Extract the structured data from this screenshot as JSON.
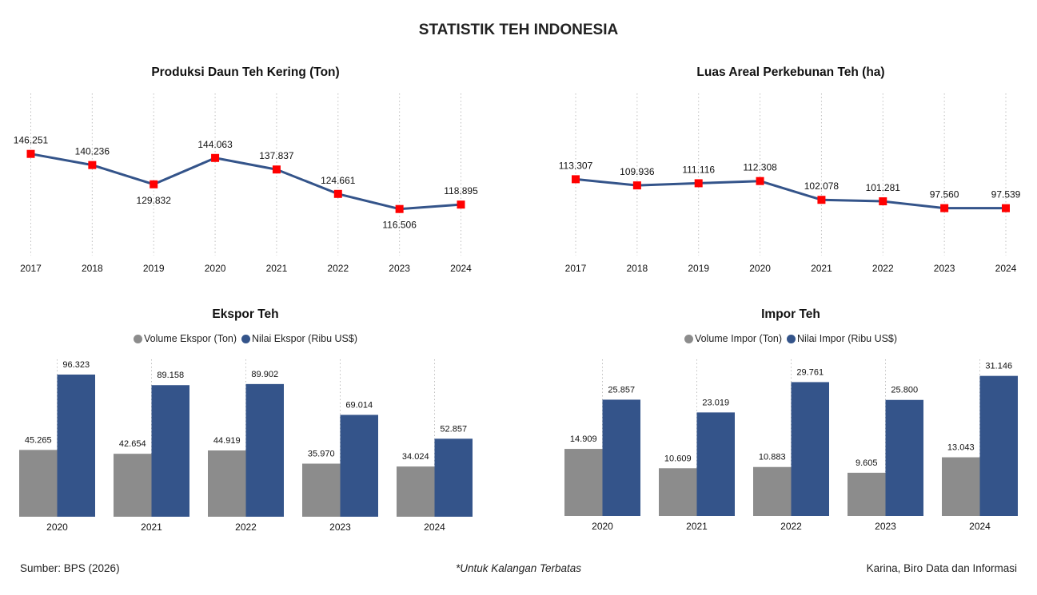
{
  "header": {
    "title": "STATISTIK TEH INDONESIA"
  },
  "footer": {
    "source": "Sumber: BPS (2026)",
    "note": "*Untuk Kalangan Terbatas",
    "author": "Karina, Biro Data dan Informasi"
  },
  "colors": {
    "line": "#34548A",
    "marker": "#FF0000",
    "bar_volume": "#8C8C8C",
    "bar_value": "#34548A",
    "grid": "#BFBFBF"
  },
  "chart_data": [
    {
      "id": "produksi",
      "type": "line",
      "title": "Produksi Daun Teh Kering (Ton)",
      "categories": [
        "2017",
        "2018",
        "2019",
        "2020",
        "2021",
        "2022",
        "2023",
        "2024"
      ],
      "values": [
        146.251,
        140.236,
        129.832,
        144.063,
        137.837,
        124.661,
        116.506,
        118.895
      ],
      "labels": [
        "146.251",
        "140.236",
        "129.832",
        "144.063",
        "137.837",
        "124.661",
        "116.506",
        "118.895"
      ],
      "label_position": [
        "above",
        "above",
        "below",
        "above",
        "above",
        "above",
        "below",
        "above"
      ],
      "xlabel": "",
      "ylabel": "",
      "ylim": [
        0,
        190
      ],
      "grid": "vertical-dotted",
      "legend": "none"
    },
    {
      "id": "luas",
      "type": "line",
      "title": "Luas Areal Perkebunan Teh (ha)",
      "categories": [
        "2017",
        "2018",
        "2019",
        "2020",
        "2021",
        "2022",
        "2023",
        "2024"
      ],
      "values": [
        113.307,
        109.936,
        111.116,
        112.308,
        102.078,
        101.281,
        97.56,
        97.539
      ],
      "labels": [
        "113.307",
        "109.936",
        "111.116",
        "112.308",
        "102.078",
        "101.281",
        "97.560",
        "97.539"
      ],
      "label_position": [
        "above",
        "above",
        "above",
        "above",
        "above",
        "above",
        "above",
        "above"
      ],
      "xlabel": "",
      "ylabel": "",
      "ylim": [
        0,
        150
      ],
      "grid": "vertical-dotted",
      "legend": "none"
    },
    {
      "id": "ekspor",
      "type": "bar",
      "title": "Ekspor Teh",
      "categories": [
        "2020",
        "2021",
        "2022",
        "2023",
        "2024"
      ],
      "series": [
        {
          "name": "Volume Ekspor (Ton)",
          "values": [
            45.265,
            42.654,
            44.919,
            35.97,
            34.024
          ],
          "labels": [
            "45.265",
            "42.654",
            "44.919",
            "35.970",
            "34.024"
          ]
        },
        {
          "name": "Nilai Ekspor (Ribu US$)",
          "values": [
            96.323,
            89.158,
            89.902,
            69.014,
            52.857
          ],
          "labels": [
            "96.323",
            "89.158",
            "89.902",
            "69.014",
            "52.857"
          ]
        }
      ],
      "xlabel": "",
      "ylabel": "",
      "ylim": [
        0,
        105
      ],
      "grid": "vertical-dotted",
      "legend": "top"
    },
    {
      "id": "impor",
      "type": "bar",
      "title": "Impor Teh",
      "categories": [
        "2020",
        "2021",
        "2022",
        "2023",
        "2024"
      ],
      "series": [
        {
          "name": "Volume Impor (Ton)",
          "values": [
            14.909,
            10.609,
            10.883,
            9.605,
            13.043
          ],
          "labels": [
            "14.909",
            "10.609",
            "10.883",
            "9.605",
            "13.043"
          ]
        },
        {
          "name": "Nilai Impor (Ribu US$)",
          "values": [
            25.857,
            23.019,
            29.761,
            25.8,
            31.146
          ],
          "labels": [
            "25.857",
            "23.019",
            "29.761",
            "25.800",
            "31.146"
          ]
        }
      ],
      "xlabel": "",
      "ylabel": "",
      "ylim": [
        0,
        34
      ],
      "grid": "vertical-dotted",
      "legend": "top"
    }
  ]
}
